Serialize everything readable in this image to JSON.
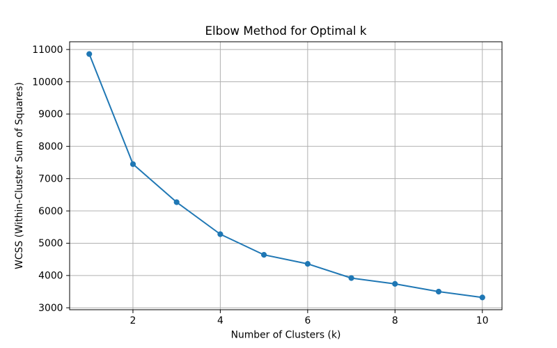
{
  "figure": {
    "background": "#ffffff"
  },
  "chart_data": {
    "type": "line",
    "title": "Elbow Method for Optimal k",
    "xlabel": "Number of Clusters (k)",
    "ylabel": "WCSS (Within-Cluster Sum of Squares)",
    "x": [
      1,
      2,
      3,
      4,
      5,
      6,
      7,
      8,
      9,
      10
    ],
    "series": [
      {
        "name": "WCSS",
        "values": [
          10860,
          7450,
          6270,
          5280,
          4640,
          4360,
          3920,
          3740,
          3500,
          3320
        ],
        "color": "#1f77b4",
        "marker": "circle"
      }
    ],
    "xticks": [
      2,
      4,
      6,
      8,
      10
    ],
    "yticks": [
      3000,
      4000,
      5000,
      6000,
      7000,
      8000,
      9000,
      10000,
      11000
    ],
    "xlim": [
      0.55,
      10.45
    ],
    "ylim": [
      2940,
      11240
    ],
    "grid": true,
    "legend": false
  },
  "style": {
    "line_color": "#1f77b4",
    "grid_color": "#b0b0b0",
    "spine_color": "#000000",
    "tick_color": "#000000",
    "text_color": "#000000"
  }
}
